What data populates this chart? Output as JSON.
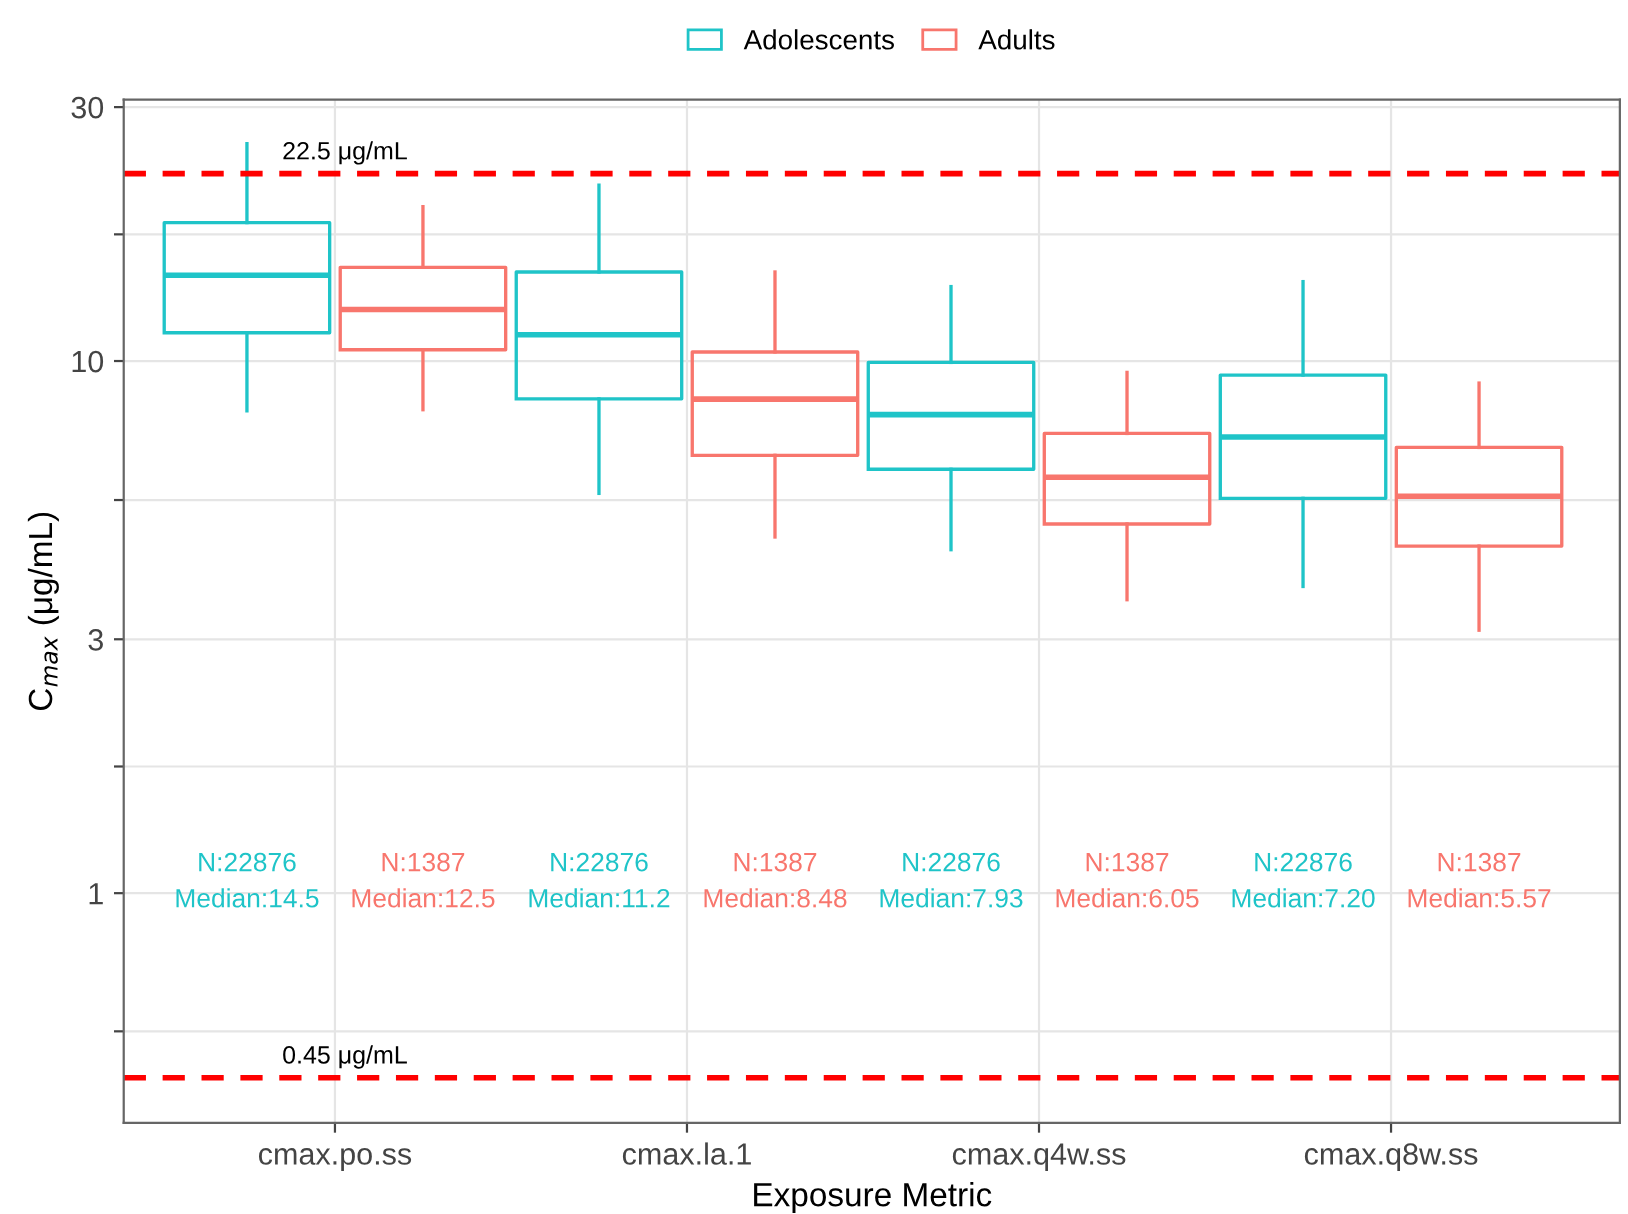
{
  "chart_data": {
    "type": "box",
    "xlabel": "Exposure Metric",
    "ylabel": "C$_{max}$ (μg/mL)",
    "categories": [
      "cmax.po.ss",
      "cmax.la.1",
      "cmax.q4w.ss",
      "cmax.q8w.ss"
    ],
    "series": [
      {
        "name": "Adolescents",
        "color": "#1fc4c8",
        "value_labels": [
          "N:22876\nMedian:14.5",
          "N:22876\nMedian:11.2",
          "N:22876\nMedian:7.93",
          "N:22876\nMedian:7.20"
        ],
        "boxes": [
          {
            "low": 8.06,
            "q1": 11.3,
            "median": 14.5,
            "q3": 18.2,
            "high": 25.6
          },
          {
            "low": 5.64,
            "q1": 8.49,
            "median": 11.2,
            "q3": 14.7,
            "high": 21.4
          },
          {
            "low": 4.42,
            "q1": 6.26,
            "median": 7.93,
            "q3": 9.94,
            "high": 13.8
          },
          {
            "low": 3.77,
            "q1": 5.52,
            "median": 7.2,
            "q3": 9.41,
            "high": 14.1
          }
        ]
      },
      {
        "name": "Adults",
        "color": "#f8766d",
        "value_labels": [
          "N:1387\nMedian:12.5",
          "N:1387\nMedian:8.48",
          "N:1387\nMedian:6.05",
          "N:1387\nMedian:5.57"
        ],
        "boxes": [
          {
            "low": 8.1,
            "q1": 10.5,
            "median": 12.5,
            "q3": 15.0,
            "high": 19.5
          },
          {
            "low": 4.67,
            "q1": 6.65,
            "median": 8.48,
            "q3": 10.4,
            "high": 14.7
          },
          {
            "low": 3.56,
            "q1": 4.94,
            "median": 6.05,
            "q3": 7.31,
            "high": 9.52
          },
          {
            "low": 3.12,
            "q1": 4.49,
            "median": 5.57,
            "q3": 6.88,
            "high": 9.09
          }
        ]
      }
    ],
    "log": "y",
    "ylim": [
      0.37,
      31
    ],
    "yticks": [
      1,
      3,
      10,
      30,
      {
        "value": 0.55,
        "label": null
      },
      {
        "value": 1.73,
        "label": null
      },
      {
        "value": 5.48,
        "label": null
      },
      {
        "value": 17.3,
        "label": null
      }
    ],
    "ref_lines": [
      {
        "axis": "y",
        "value": 22.5,
        "label": "22.5 μg/mL",
        "color": "#ff0000",
        "line_style": "dashed"
      },
      {
        "axis": "y",
        "value": 0.45,
        "label": "0.45 μg/mL",
        "color": "#ff0000",
        "line_style": "dashed"
      }
    ],
    "grid": true,
    "legend": "top"
  }
}
